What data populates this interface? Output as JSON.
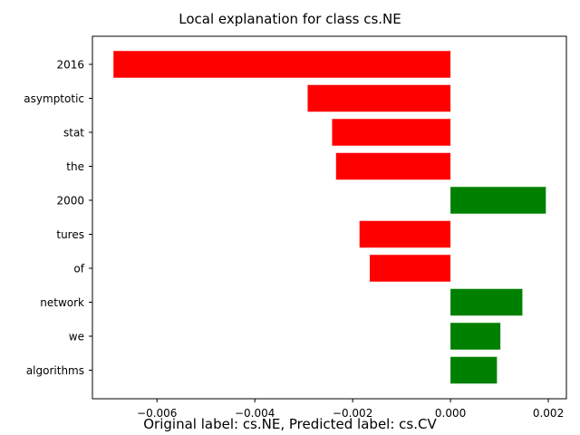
{
  "chart_data": {
    "type": "bar",
    "orientation": "horizontal",
    "title": "Local explanation for class cs.NE",
    "caption": "Original label: cs.NE, Predicted label: cs.CV",
    "categories": [
      "2016",
      "asymptotic",
      "stat",
      "the",
      "2000",
      "tures",
      "of",
      "network",
      "we",
      "algorithms"
    ],
    "values": [
      -0.00689,
      -0.00292,
      -0.00242,
      -0.00234,
      0.00195,
      -0.00186,
      -0.00165,
      0.00147,
      0.00102,
      0.00095
    ],
    "xlim": [
      -0.00732,
      0.00237
    ],
    "xticks": [
      -0.006,
      -0.004,
      -0.002,
      0.0,
      0.002
    ],
    "xtick_labels": [
      "−0.006",
      "−0.004",
      "−0.002",
      "0.000",
      "0.002"
    ],
    "grid": false,
    "colors": {
      "positive": "#008000",
      "negative": "#ff0000"
    }
  }
}
